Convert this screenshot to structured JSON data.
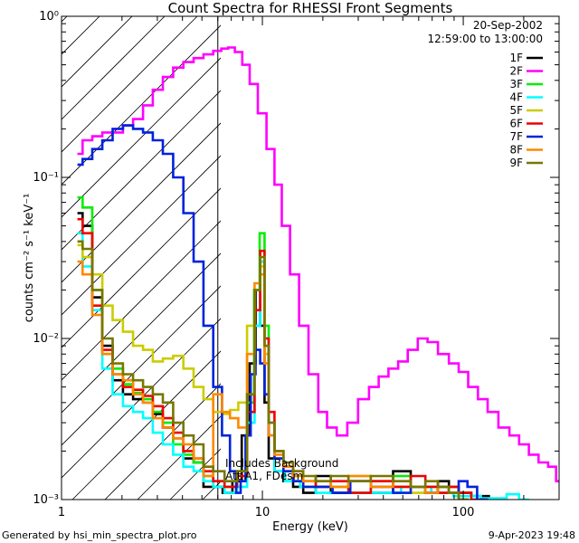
{
  "chart_data": {
    "type": "line",
    "title": "Count Spectra for RHESSI Front Segments",
    "xlabel": "Energy (keV)",
    "ylabel": "counts cm⁻² s⁻¹ keV⁻¹",
    "xscale": "log",
    "yscale": "log",
    "xlim": [
      1,
      300
    ],
    "ylim": [
      0.001,
      1
    ],
    "x_ticks": [
      {
        "value": 1,
        "label": "1"
      },
      {
        "value": 10,
        "label": "10"
      },
      {
        "value": 100,
        "label": "100"
      }
    ],
    "y_ticks": [
      {
        "value": 0.001,
        "label": "10⁻³"
      },
      {
        "value": 0.01,
        "label": "10⁻²"
      },
      {
        "value": 0.1,
        "label": "10⁻¹"
      },
      {
        "value": 1,
        "label": "10⁰"
      }
    ],
    "date": "20-Sep-2002",
    "time_range": "12:59:00 to 13:00:00",
    "annotation_lines": [
      "Includes Background",
      "Att A1, FDesm"
    ],
    "excluded_region_xmax": 6,
    "footer_left": "Generated by hsi_min_spectra_plot.pro",
    "footer_right": "9-Apr-2023 19:48",
    "series": [
      {
        "name": "1F",
        "color": "#000000",
        "x": [
          1.2,
          1.35,
          1.5,
          1.7,
          1.9,
          2.15,
          2.4,
          2.7,
          3.0,
          3.4,
          3.8,
          4.3,
          4.8,
          5.4,
          6.0,
          6.7,
          7.5,
          8.3,
          9.0,
          9.5,
          10.0,
          10.5,
          11.0,
          12.0,
          13.5,
          15,
          17,
          20,
          24,
          30,
          40,
          50,
          60,
          70,
          80,
          90,
          100,
          120,
          150
        ],
        "y": [
          0.06,
          0.05,
          0.018,
          0.009,
          0.0055,
          0.0045,
          0.0042,
          0.004,
          0.0034,
          0.0028,
          0.0024,
          0.0018,
          0.0017,
          0.0012,
          0.0012,
          0.0011,
          0.0013,
          0.0025,
          0.007,
          0.02,
          0.012,
          0.004,
          0.0018,
          0.0015,
          0.0013,
          0.0012,
          0.0011,
          0.0014,
          0.0011,
          0.0013,
          0.0011,
          0.0015,
          0.0012,
          0.0011,
          0.0013,
          0.0012,
          0.0011,
          0.00105,
          0.001
        ]
      },
      {
        "name": "2F",
        "color": "#ff00ff",
        "x": [
          1.2,
          1.35,
          1.5,
          1.7,
          1.9,
          2.15,
          2.4,
          2.7,
          3.0,
          3.4,
          3.8,
          4.3,
          4.8,
          5.4,
          6.0,
          6.5,
          7.0,
          7.6,
          8.3,
          9.0,
          10.0,
          11.0,
          12.0,
          13.0,
          14.5,
          16,
          18,
          20,
          22,
          25,
          28,
          32,
          36,
          40,
          45,
          50,
          56,
          63,
          70,
          80,
          90,
          100,
          112,
          125,
          140,
          160,
          180,
          200,
          225,
          250,
          280,
          300
        ],
        "y": [
          0.14,
          0.17,
          0.18,
          0.19,
          0.19,
          0.21,
          0.23,
          0.28,
          0.35,
          0.42,
          0.48,
          0.52,
          0.55,
          0.58,
          0.61,
          0.63,
          0.64,
          0.6,
          0.5,
          0.38,
          0.25,
          0.15,
          0.09,
          0.05,
          0.025,
          0.012,
          0.006,
          0.0035,
          0.0028,
          0.0025,
          0.003,
          0.0042,
          0.005,
          0.0058,
          0.0065,
          0.0072,
          0.0085,
          0.01,
          0.0095,
          0.008,
          0.007,
          0.0062,
          0.005,
          0.0042,
          0.0035,
          0.0028,
          0.0025,
          0.0022,
          0.0019,
          0.0017,
          0.0016,
          0.0013
        ]
      },
      {
        "name": "3F",
        "color": "#00ee00",
        "x": [
          1.2,
          1.35,
          1.5,
          1.7,
          1.9,
          2.15,
          2.4,
          2.7,
          3.0,
          3.4,
          3.8,
          4.3,
          4.8,
          5.4,
          6.0,
          7.0,
          8.0,
          8.8,
          9.4,
          10.0,
          10.5,
          11.0,
          12.0,
          13.5,
          15,
          17,
          20,
          24,
          30,
          40,
          50,
          60,
          70,
          80,
          90,
          100
        ],
        "y": [
          0.075,
          0.065,
          0.02,
          0.008,
          0.0065,
          0.0052,
          0.0046,
          0.0042,
          0.0035,
          0.003,
          0.0022,
          0.0019,
          0.0017,
          0.0014,
          0.0013,
          0.0012,
          0.0015,
          0.004,
          0.02,
          0.045,
          0.012,
          0.003,
          0.002,
          0.0016,
          0.0014,
          0.0013,
          0.0012,
          0.0012,
          0.0011,
          0.0013,
          0.0014,
          0.0012,
          0.0011,
          0.0012,
          0.0011,
          0.001
        ]
      },
      {
        "name": "4F",
        "color": "#00ffff",
        "x": [
          1.2,
          1.35,
          1.5,
          1.7,
          1.9,
          2.15,
          2.4,
          2.7,
          3.0,
          3.4,
          3.8,
          4.3,
          4.8,
          5.4,
          6.0,
          7.0,
          8.0,
          8.8,
          9.5,
          10.0,
          10.5,
          11.0,
          12.0,
          14,
          17,
          20,
          25,
          30,
          40,
          60,
          80,
          100,
          150,
          180,
          200
        ],
        "y": [
          0.045,
          0.028,
          0.015,
          0.0065,
          0.0045,
          0.0038,
          0.0035,
          0.0032,
          0.0026,
          0.0022,
          0.0019,
          0.0016,
          0.0015,
          0.0013,
          0.0012,
          0.0011,
          0.0012,
          0.003,
          0.012,
          0.03,
          0.01,
          0.003,
          0.0015,
          0.0013,
          0.0012,
          0.0011,
          0.0012,
          0.0011,
          0.0011,
          0.0012,
          0.0011,
          0.00105,
          0.00102,
          0.00108,
          0.001
        ]
      },
      {
        "name": "5F",
        "color": "#cccc00",
        "x": [
          1.2,
          1.35,
          1.5,
          1.7,
          1.9,
          2.15,
          2.4,
          2.7,
          3.0,
          3.4,
          3.8,
          4.3,
          4.8,
          5.4,
          6.0,
          6.6,
          7.2,
          8.0,
          8.8,
          9.5,
          10.0,
          10.5,
          11.0,
          12.0,
          13.5,
          15,
          17,
          20,
          24,
          30,
          40,
          50,
          60,
          70,
          80,
          90,
          100
        ],
        "y": [
          0.038,
          0.032,
          0.025,
          0.016,
          0.013,
          0.011,
          0.009,
          0.0085,
          0.0072,
          0.0075,
          0.0078,
          0.0065,
          0.005,
          0.0042,
          0.0035,
          0.0034,
          0.0036,
          0.004,
          0.012,
          0.02,
          0.028,
          0.008,
          0.0025,
          0.0018,
          0.0015,
          0.0013,
          0.0012,
          0.0013,
          0.0012,
          0.0014,
          0.0013,
          0.0012,
          0.0011,
          0.0012,
          0.0011,
          0.0012,
          0.001
        ]
      },
      {
        "name": "6F",
        "color": "#ee0000",
        "x": [
          1.2,
          1.35,
          1.5,
          1.7,
          1.9,
          2.15,
          2.4,
          2.7,
          3.0,
          3.4,
          3.8,
          4.3,
          4.8,
          5.4,
          6.0,
          7.0,
          8.0,
          8.8,
          9.5,
          10.0,
          10.5,
          11.0,
          12.0,
          13.5,
          15,
          17,
          20,
          24,
          30,
          40,
          50,
          60,
          70,
          80,
          90,
          100,
          120
        ],
        "y": [
          0.055,
          0.045,
          0.016,
          0.0085,
          0.006,
          0.005,
          0.0048,
          0.0044,
          0.0038,
          0.0032,
          0.0026,
          0.002,
          0.0018,
          0.0015,
          0.0013,
          0.0012,
          0.0014,
          0.0035,
          0.015,
          0.035,
          0.01,
          0.0035,
          0.002,
          0.0016,
          0.0015,
          0.0013,
          0.0012,
          0.0013,
          0.0011,
          0.0013,
          0.0012,
          0.0014,
          0.0012,
          0.0011,
          0.0012,
          0.0011,
          0.001
        ]
      },
      {
        "name": "7F",
        "color": "#0022dd",
        "x": [
          1.2,
          1.35,
          1.5,
          1.7,
          1.9,
          2.15,
          2.4,
          2.7,
          3.0,
          3.4,
          3.8,
          4.3,
          4.8,
          5.4,
          6.0,
          6.6,
          7.2,
          7.6,
          8.0,
          8.5,
          9.0,
          9.5,
          10.0,
          10.5,
          11.0,
          12.0,
          13.5,
          15,
          17,
          20,
          25,
          30,
          40,
          50,
          60,
          70,
          80,
          90,
          100,
          110,
          125
        ],
        "y": [
          0.12,
          0.13,
          0.15,
          0.17,
          0.2,
          0.21,
          0.2,
          0.19,
          0.17,
          0.14,
          0.1,
          0.06,
          0.03,
          0.012,
          0.005,
          0.0025,
          0.0015,
          0.0011,
          0.0013,
          0.0025,
          0.006,
          0.0085,
          0.007,
          0.0045,
          0.0025,
          0.0018,
          0.0015,
          0.0013,
          0.0012,
          0.0012,
          0.0011,
          0.0013,
          0.0012,
          0.0011,
          0.0012,
          0.0011,
          0.0012,
          0.0011,
          0.0013,
          0.0012,
          0.001
        ]
      },
      {
        "name": "8F",
        "color": "#ff8800",
        "x": [
          1.2,
          1.35,
          1.5,
          1.7,
          1.9,
          2.15,
          2.4,
          2.7,
          3.0,
          3.4,
          3.8,
          4.3,
          4.8,
          5.4,
          6.0,
          6.6,
          7.2,
          8.0,
          8.8,
          9.5,
          10.0,
          10.5,
          11.0,
          12.0,
          13.5,
          15,
          17,
          20,
          24,
          30,
          40,
          50,
          60,
          70,
          80,
          90,
          100
        ],
        "y": [
          0.03,
          0.025,
          0.014,
          0.008,
          0.006,
          0.0055,
          0.0045,
          0.004,
          0.0032,
          0.0028,
          0.0024,
          0.0022,
          0.0018,
          0.0014,
          0.0045,
          0.0035,
          0.0032,
          0.0028,
          0.008,
          0.022,
          0.025,
          0.007,
          0.0025,
          0.0019,
          0.0016,
          0.0014,
          0.0013,
          0.0013,
          0.0012,
          0.0014,
          0.0012,
          0.0013,
          0.0012,
          0.0011,
          0.0012,
          0.0011,
          0.001
        ]
      },
      {
        "name": "9F",
        "color": "#777700",
        "x": [
          1.2,
          1.35,
          1.5,
          1.7,
          1.9,
          2.15,
          2.4,
          2.7,
          3.0,
          3.4,
          3.8,
          4.3,
          4.8,
          5.4,
          6.0,
          7.0,
          8.0,
          8.8,
          9.5,
          10.0,
          10.5,
          11.0,
          12.0,
          13.5,
          15,
          17,
          20,
          24,
          30,
          40,
          50,
          60,
          70,
          80,
          90,
          100
        ],
        "y": [
          0.04,
          0.036,
          0.02,
          0.01,
          0.007,
          0.006,
          0.0055,
          0.005,
          0.0045,
          0.004,
          0.003,
          0.0025,
          0.0022,
          0.0016,
          0.0015,
          0.0013,
          0.0015,
          0.0045,
          0.02,
          0.032,
          0.009,
          0.003,
          0.002,
          0.0017,
          0.0015,
          0.0014,
          0.0013,
          0.0014,
          0.0013,
          0.0014,
          0.0013,
          0.0012,
          0.0013,
          0.0012,
          0.0011,
          0.001
        ]
      }
    ]
  }
}
